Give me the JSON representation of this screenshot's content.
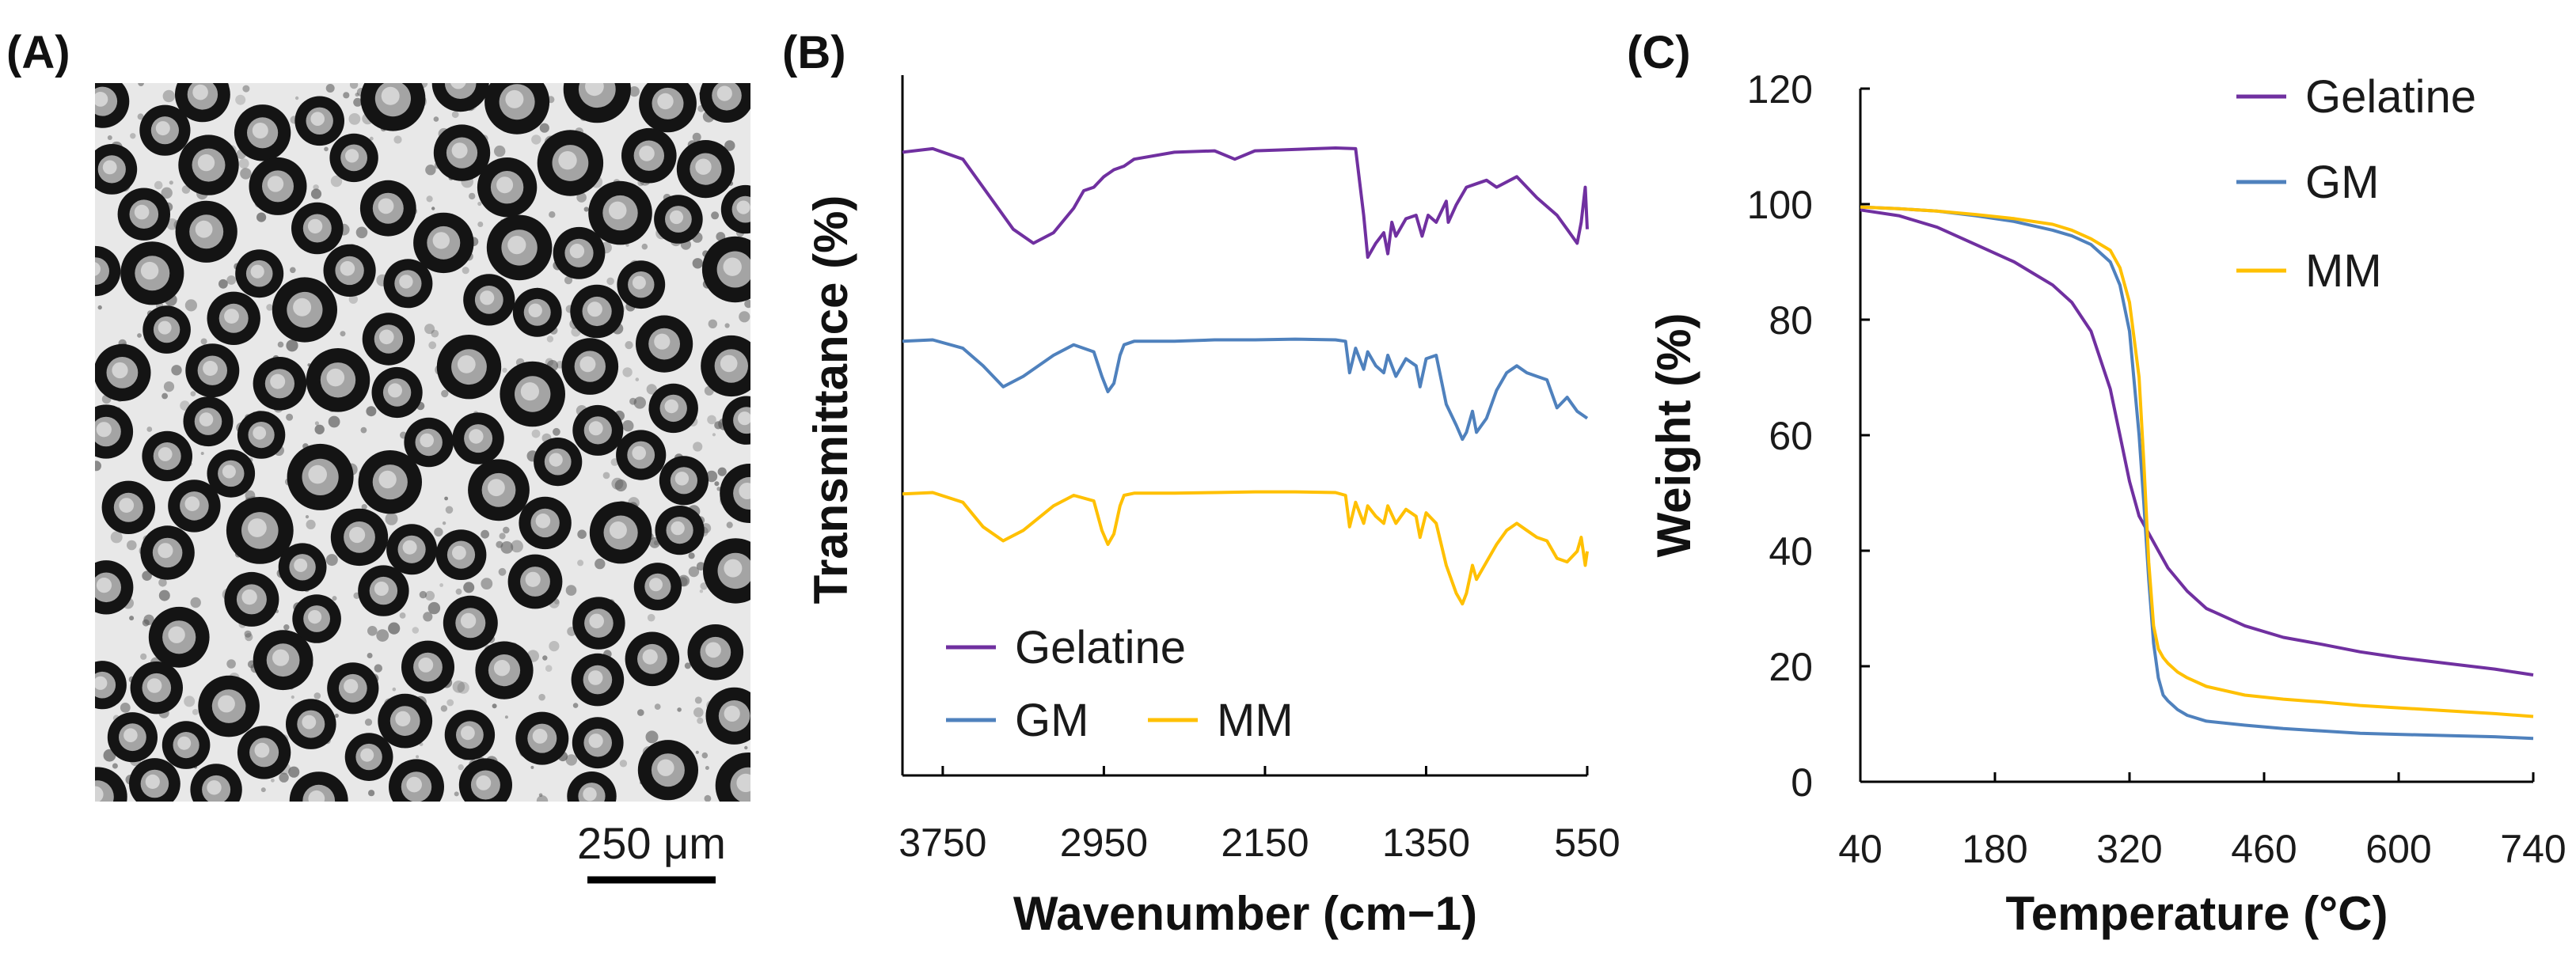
{
  "panels": {
    "a": {
      "label": "(A)",
      "image_alt": "Micrograph of microspheres",
      "scale_bar_label": "250 μm"
    },
    "b": {
      "label": "(B)"
    },
    "c": {
      "label": "(C)"
    }
  },
  "colors": {
    "Gelatine": "#7030A0",
    "GM": "#4F81BD",
    "MM": "#FFC000",
    "axis": "#000000"
  },
  "chart_data": [
    {
      "type": "line",
      "title": "",
      "xlabel": "Wavenumber (cm−1)",
      "ylabel": "Transmittance (%)",
      "x_reversed": true,
      "xlim": [
        3950,
        550
      ],
      "x_ticks": [
        3750,
        2950,
        2150,
        1350,
        550
      ],
      "x_tick_labels": [
        "3750",
        "2950",
        "2150",
        "1350",
        "550"
      ],
      "y_ticks": false,
      "legend_location": "bottom-left",
      "legend_entries": [
        "Gelatine",
        "GM",
        "MM"
      ],
      "series": [
        {
          "name": "Gelatine",
          "x": [
            3950,
            3800,
            3650,
            3500,
            3400,
            3300,
            3200,
            3100,
            3050,
            3000,
            2950,
            2900,
            2850,
            2800,
            2600,
            2400,
            2300,
            2200,
            2100,
            1900,
            1800,
            1700,
            1660,
            1640,
            1600,
            1560,
            1540,
            1520,
            1500,
            1450,
            1400,
            1370,
            1340,
            1300,
            1250,
            1240,
            1200,
            1150,
            1100,
            1050,
            1000,
            900,
            800,
            700,
            650,
            600,
            580,
            560,
            550
          ],
          "y": [
            0.89,
            0.895,
            0.88,
            0.82,
            0.78,
            0.76,
            0.775,
            0.81,
            0.835,
            0.84,
            0.855,
            0.865,
            0.87,
            0.88,
            0.89,
            0.892,
            0.88,
            0.892,
            0.893,
            0.895,
            0.896,
            0.895,
            0.8,
            0.74,
            0.76,
            0.775,
            0.745,
            0.79,
            0.77,
            0.795,
            0.8,
            0.77,
            0.8,
            0.79,
            0.82,
            0.79,
            0.815,
            0.84,
            0.845,
            0.85,
            0.84,
            0.855,
            0.825,
            0.8,
            0.78,
            0.76,
            0.79,
            0.84,
            0.78
          ]
        },
        {
          "name": "GM",
          "x": [
            3950,
            3800,
            3650,
            3550,
            3450,
            3350,
            3200,
            3100,
            3000,
            2960,
            2930,
            2900,
            2870,
            2850,
            2800,
            2600,
            2400,
            2200,
            2000,
            1800,
            1750,
            1730,
            1700,
            1660,
            1640,
            1600,
            1560,
            1540,
            1500,
            1450,
            1400,
            1380,
            1350,
            1300,
            1250,
            1200,
            1170,
            1150,
            1120,
            1100,
            1050,
            1000,
            950,
            900,
            850,
            800,
            750,
            700,
            650,
            600,
            550
          ],
          "y": [
            0.62,
            0.622,
            0.61,
            0.585,
            0.555,
            0.57,
            0.6,
            0.615,
            0.605,
            0.57,
            0.548,
            0.56,
            0.6,
            0.615,
            0.62,
            0.62,
            0.622,
            0.622,
            0.623,
            0.622,
            0.62,
            0.575,
            0.61,
            0.58,
            0.605,
            0.585,
            0.575,
            0.6,
            0.57,
            0.595,
            0.585,
            0.555,
            0.595,
            0.6,
            0.53,
            0.5,
            0.48,
            0.49,
            0.52,
            0.49,
            0.51,
            0.55,
            0.575,
            0.585,
            0.575,
            0.57,
            0.565,
            0.525,
            0.54,
            0.52,
            0.51
          ]
        },
        {
          "name": "MM",
          "x": [
            3950,
            3800,
            3650,
            3550,
            3450,
            3350,
            3200,
            3100,
            3000,
            2960,
            2930,
            2900,
            2870,
            2850,
            2800,
            2600,
            2400,
            2200,
            2000,
            1800,
            1750,
            1730,
            1700,
            1660,
            1640,
            1600,
            1560,
            1540,
            1500,
            1450,
            1400,
            1380,
            1350,
            1300,
            1250,
            1200,
            1170,
            1150,
            1120,
            1100,
            1050,
            1000,
            950,
            900,
            850,
            800,
            750,
            700,
            650,
            600,
            580,
            560,
            550
          ],
          "y": [
            0.402,
            0.404,
            0.39,
            0.355,
            0.335,
            0.35,
            0.385,
            0.4,
            0.392,
            0.35,
            0.33,
            0.345,
            0.385,
            0.4,
            0.403,
            0.403,
            0.404,
            0.405,
            0.405,
            0.404,
            0.4,
            0.355,
            0.39,
            0.36,
            0.385,
            0.37,
            0.36,
            0.385,
            0.36,
            0.38,
            0.37,
            0.34,
            0.375,
            0.36,
            0.3,
            0.26,
            0.245,
            0.26,
            0.3,
            0.28,
            0.305,
            0.33,
            0.35,
            0.36,
            0.35,
            0.34,
            0.335,
            0.31,
            0.305,
            0.32,
            0.34,
            0.3,
            0.32
          ]
        }
      ]
    },
    {
      "type": "line",
      "title": "",
      "xlabel": "Temperature (°C)",
      "ylabel": "Weight (%)",
      "xlim": [
        40,
        740
      ],
      "ylim": [
        0,
        120
      ],
      "x_ticks": [
        40,
        180,
        320,
        460,
        600,
        740
      ],
      "x_tick_labels": [
        "40",
        "180",
        "320",
        "460",
        "600",
        "740"
      ],
      "y_ticks": [
        0,
        20,
        40,
        60,
        80,
        100,
        120
      ],
      "y_tick_labels": [
        "0",
        "20",
        "40",
        "60",
        "80",
        "100",
        "120"
      ],
      "legend_location": "top-right",
      "legend_entries": [
        "Gelatine",
        "GM",
        "MM"
      ],
      "series": [
        {
          "name": "Gelatine",
          "x": [
            40,
            80,
            120,
            160,
            200,
            220,
            240,
            260,
            280,
            300,
            310,
            320,
            330,
            340,
            350,
            360,
            380,
            400,
            440,
            480,
            520,
            560,
            600,
            650,
            700,
            740
          ],
          "y": [
            99,
            98,
            96,
            93,
            90,
            88,
            86,
            83,
            78,
            68,
            60,
            52,
            46,
            43,
            40,
            37,
            33,
            30,
            27,
            25,
            23.8,
            22.5,
            21.5,
            20.5,
            19.5,
            18.5
          ]
        },
        {
          "name": "GM",
          "x": [
            40,
            80,
            120,
            160,
            200,
            240,
            260,
            280,
            300,
            310,
            320,
            330,
            335,
            340,
            345,
            350,
            355,
            360,
            370,
            380,
            400,
            440,
            480,
            520,
            560,
            600,
            650,
            700,
            740
          ],
          "y": [
            99.5,
            99.2,
            98.8,
            98,
            97,
            95.5,
            94.5,
            93,
            90,
            86,
            78,
            60,
            48,
            35,
            24,
            18,
            15,
            14,
            12.5,
            11.5,
            10.5,
            9.8,
            9.2,
            8.8,
            8.4,
            8.2,
            8,
            7.8,
            7.5
          ]
        },
        {
          "name": "MM",
          "x": [
            40,
            80,
            120,
            160,
            200,
            240,
            260,
            280,
            300,
            310,
            320,
            330,
            335,
            340,
            345,
            350,
            355,
            360,
            370,
            380,
            400,
            440,
            480,
            520,
            560,
            600,
            650,
            700,
            740
          ],
          "y": [
            99.5,
            99.2,
            98.8,
            98.2,
            97.5,
            96.5,
            95.5,
            94,
            92,
            89,
            83,
            70,
            55,
            38,
            27,
            23,
            21.5,
            20.5,
            19,
            18,
            16.5,
            15,
            14.3,
            13.8,
            13.2,
            12.8,
            12.3,
            11.8,
            11.3
          ]
        }
      ]
    }
  ]
}
